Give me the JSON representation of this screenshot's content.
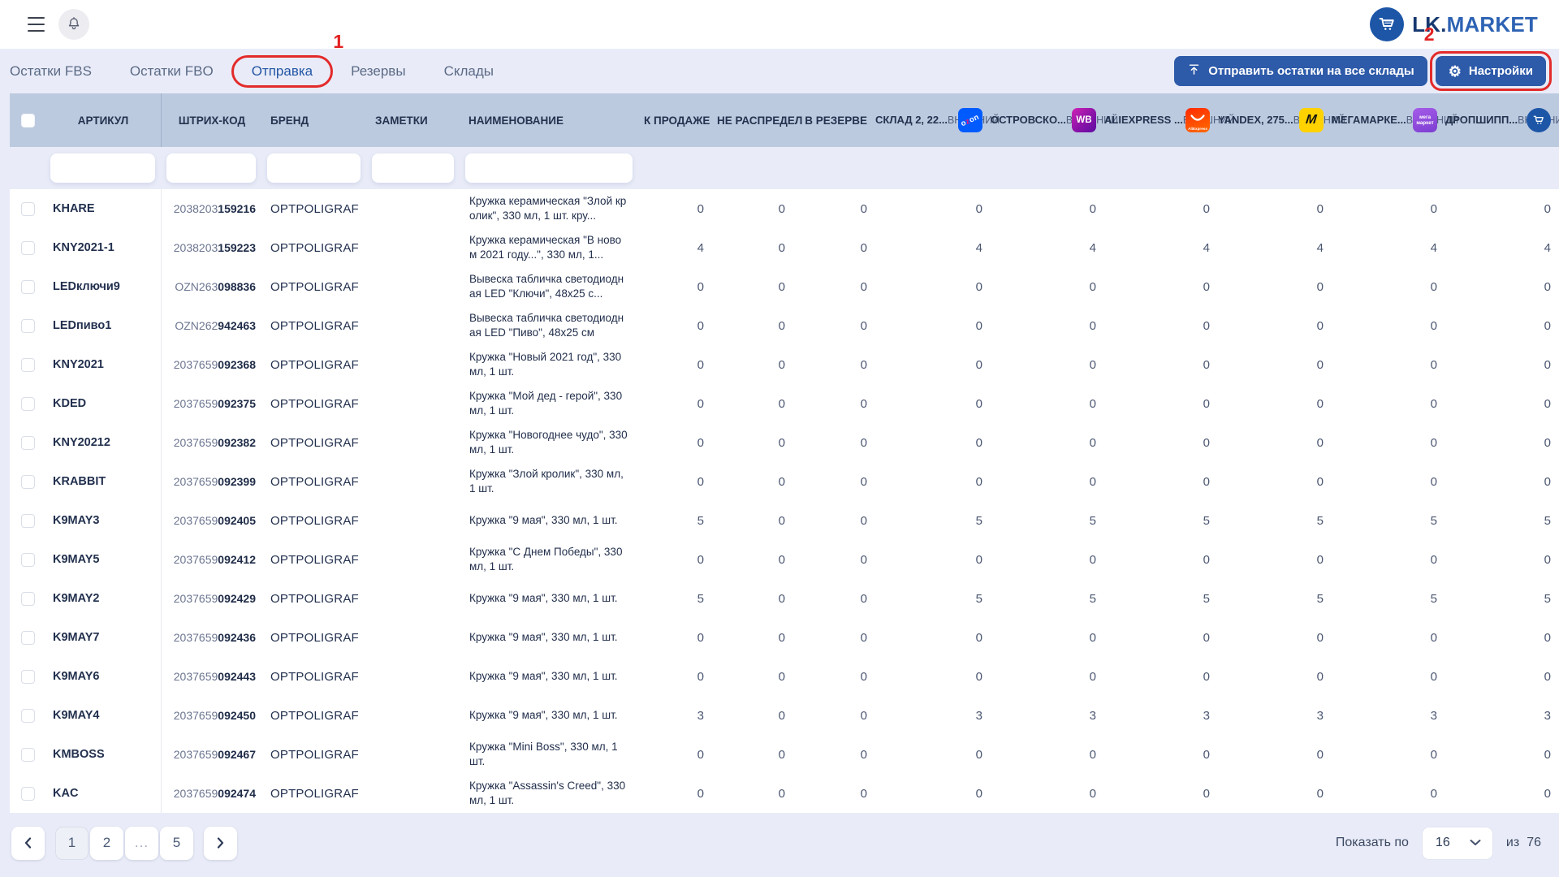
{
  "topbar": {
    "logo_lk": "LK.",
    "logo_market": "MARKET"
  },
  "nav": {
    "tabs": [
      {
        "key": "ostatki-fbs",
        "label": "Остатки FBS",
        "active": false
      },
      {
        "key": "ostatki-fbo",
        "label": "Остатки FBO",
        "active": false
      },
      {
        "key": "otpravka",
        "label": "Отправка",
        "active": true
      },
      {
        "key": "rezervy",
        "label": "Резервы",
        "active": false
      },
      {
        "key": "sklady",
        "label": "Склады",
        "active": false
      }
    ],
    "send_all_label": "Отправить остатки на все склады",
    "settings_label": "Настройки"
  },
  "annotations": {
    "step1": "1",
    "step2": "2"
  },
  "table": {
    "columns": {
      "article": "АРТИКУЛ",
      "barcode": "ШТРИХ-КОД",
      "brand": "БРЕНД",
      "notes": "ЗАМЕТКИ",
      "name": "НАИМЕНОВАНИЕ",
      "for_sale": "К ПРОДАЖЕ",
      "not_distributed": "НЕ РАСПРЕДЕЛ",
      "in_reserve": "В РЕЗЕРВЕ"
    },
    "warehouse_type_label": "ВНЕШНИЙ",
    "warehouses": [
      {
        "name": "СКЛАД 2, 22...",
        "icon": "ozon"
      },
      {
        "name": "ОСТРОВСКО...",
        "icon": "wildberries"
      },
      {
        "name": "ALIEXPRESS ...",
        "icon": "aliexpress"
      },
      {
        "name": "YANDEX, 275...",
        "icon": "yandex-market"
      },
      {
        "name": "МЕГАМАРКЕ...",
        "icon": "megamarket"
      },
      {
        "name": "ДРОПШИПП...",
        "icon": "dropshipping"
      }
    ],
    "filters": {
      "article": "",
      "barcode": "",
      "brand": "",
      "notes": "",
      "name": ""
    },
    "rows": [
      {
        "article": "KHARE",
        "barcode_prefix": "2038203",
        "barcode_suffix": "159216",
        "brand": "OPTPOLIGRAF",
        "notes": "",
        "name": "Кружка керамическая \"Злой кролик\", 330 мл, 1 шт. кру...",
        "values": [
          0,
          0,
          0,
          0,
          0,
          0,
          0,
          0,
          0
        ]
      },
      {
        "article": "KNY2021-1",
        "barcode_prefix": "2038203",
        "barcode_suffix": "159223",
        "brand": "OPTPOLIGRAF",
        "notes": "",
        "name": "Кружка керамическая \"В новом 2021 году...\", 330 мл, 1...",
        "values": [
          4,
          0,
          0,
          4,
          4,
          4,
          4,
          4,
          4
        ]
      },
      {
        "article": "LEDключи9",
        "barcode_prefix": "OZN263",
        "barcode_suffix": "098836",
        "brand": "OPTPOLIGRAF",
        "notes": "",
        "name": "Вывеска табличка светодиодная LED \"Ключи\", 48x25 с...",
        "values": [
          0,
          0,
          0,
          0,
          0,
          0,
          0,
          0,
          0
        ]
      },
      {
        "article": "LEDпиво1",
        "barcode_prefix": "OZN262",
        "barcode_suffix": "942463",
        "brand": "OPTPOLIGRAF",
        "notes": "",
        "name": "Вывеска табличка светодиодная LED \"Пиво\", 48x25 см",
        "values": [
          0,
          0,
          0,
          0,
          0,
          0,
          0,
          0,
          0
        ]
      },
      {
        "article": "KNY2021",
        "barcode_prefix": "2037659",
        "barcode_suffix": "092368",
        "brand": "OPTPOLIGRAF",
        "notes": "",
        "name": "Кружка \"Новый 2021 год\", 330 мл, 1 шт.",
        "values": [
          0,
          0,
          0,
          0,
          0,
          0,
          0,
          0,
          0
        ]
      },
      {
        "article": "KDED",
        "barcode_prefix": "2037659",
        "barcode_suffix": "092375",
        "brand": "OPTPOLIGRAF",
        "notes": "",
        "name": "Кружка \"Мой дед - герой\", 330 мл, 1 шт.",
        "values": [
          0,
          0,
          0,
          0,
          0,
          0,
          0,
          0,
          0
        ]
      },
      {
        "article": "KNY20212",
        "barcode_prefix": "2037659",
        "barcode_suffix": "092382",
        "brand": "OPTPOLIGRAF",
        "notes": "",
        "name": "Кружка \"Новогоднее чудо\", 330 мл, 1 шт.",
        "values": [
          0,
          0,
          0,
          0,
          0,
          0,
          0,
          0,
          0
        ]
      },
      {
        "article": "KRABBIT",
        "barcode_prefix": "2037659",
        "barcode_suffix": "092399",
        "brand": "OPTPOLIGRAF",
        "notes": "",
        "name": "Кружка \"Злой кролик\", 330 мл, 1 шт.",
        "values": [
          0,
          0,
          0,
          0,
          0,
          0,
          0,
          0,
          0
        ]
      },
      {
        "article": "K9MAY3",
        "barcode_prefix": "2037659",
        "barcode_suffix": "092405",
        "brand": "OPTPOLIGRAF",
        "notes": "",
        "name": "Кружка \"9 мая\", 330 мл, 1 шт.",
        "values": [
          5,
          0,
          0,
          5,
          5,
          5,
          5,
          5,
          5
        ]
      },
      {
        "article": "K9MAY5",
        "barcode_prefix": "2037659",
        "barcode_suffix": "092412",
        "brand": "OPTPOLIGRAF",
        "notes": "",
        "name": "Кружка \"С Днем Победы\", 330 мл, 1 шт.",
        "values": [
          0,
          0,
          0,
          0,
          0,
          0,
          0,
          0,
          0
        ]
      },
      {
        "article": "K9MAY2",
        "barcode_prefix": "2037659",
        "barcode_suffix": "092429",
        "brand": "OPTPOLIGRAF",
        "notes": "",
        "name": "Кружка \"9 мая\", 330 мл, 1 шт.",
        "values": [
          5,
          0,
          0,
          5,
          5,
          5,
          5,
          5,
          5
        ]
      },
      {
        "article": "K9MAY7",
        "barcode_prefix": "2037659",
        "barcode_suffix": "092436",
        "brand": "OPTPOLIGRAF",
        "notes": "",
        "name": "Кружка \"9 мая\", 330 мл, 1 шт.",
        "values": [
          0,
          0,
          0,
          0,
          0,
          0,
          0,
          0,
          0
        ]
      },
      {
        "article": "K9MAY6",
        "barcode_prefix": "2037659",
        "barcode_suffix": "092443",
        "brand": "OPTPOLIGRAF",
        "notes": "",
        "name": "Кружка \"9 мая\", 330 мл, 1 шт.",
        "values": [
          0,
          0,
          0,
          0,
          0,
          0,
          0,
          0,
          0
        ]
      },
      {
        "article": "K9MAY4",
        "barcode_prefix": "2037659",
        "barcode_suffix": "092450",
        "brand": "OPTPOLIGRAF",
        "notes": "",
        "name": "Кружка \"9 мая\", 330 мл, 1 шт.",
        "values": [
          3,
          0,
          0,
          3,
          3,
          3,
          3,
          3,
          3
        ]
      },
      {
        "article": "KMBOSS",
        "barcode_prefix": "2037659",
        "barcode_suffix": "092467",
        "brand": "OPTPOLIGRAF",
        "notes": "",
        "name": "Кружка \"Mini Boss\", 330 мл, 1 шт.",
        "values": [
          0,
          0,
          0,
          0,
          0,
          0,
          0,
          0,
          0
        ]
      },
      {
        "article": "KAC",
        "barcode_prefix": "2037659",
        "barcode_suffix": "092474",
        "brand": "OPTPOLIGRAF",
        "notes": "",
        "name": "Кружка \"Assassin's Creed\", 330 мл, 1 шт.",
        "values": [
          0,
          0,
          0,
          0,
          0,
          0,
          0,
          0,
          0
        ]
      }
    ]
  },
  "pagination": {
    "pages": [
      "1",
      "2",
      "...",
      "5"
    ],
    "active_page": "1",
    "show_per_label": "Показать по",
    "per_page": "16",
    "of_label": "из",
    "total": "76"
  }
}
